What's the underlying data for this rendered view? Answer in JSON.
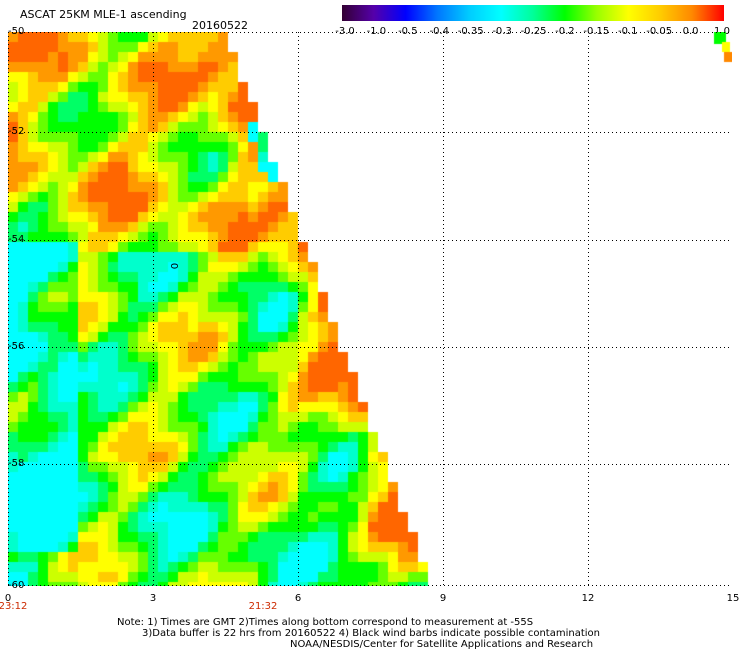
{
  "header": {
    "title": "ASCAT 25KM MLE-1 ascending",
    "date": "20160522"
  },
  "colorbar": {
    "labels": [
      "-3.0",
      "-1.0",
      "-0.5",
      "-0.4",
      "-0.35",
      "-0.3",
      "-0.25",
      "-0.2",
      "-0.15",
      "-0.1",
      "-0.05",
      "0.0",
      "1.0"
    ],
    "colors": [
      "#330033",
      "#5500aa",
      "#0000ff",
      "#0077ff",
      "#00ccff",
      "#00ffff",
      "#00ff99",
      "#00ff00",
      "#99ff00",
      "#ffff00",
      "#ffcc00",
      "#ff8800",
      "#ff0000"
    ]
  },
  "axes": {
    "y_ticks": [
      "-50",
      "-52",
      "-54",
      "-56",
      "-58",
      "-60"
    ],
    "x_ticks": [
      "0",
      "3",
      "6",
      "9",
      "12",
      "15"
    ],
    "time_labels": [
      "23:12",
      "21:32"
    ],
    "contour_label": "0"
  },
  "notes": {
    "line1": "Note: 1) Times are GMT 2)Times along bottom correspond to measurement at -55S",
    "line2": "3)Data buffer is 22 hrs from 20160522 4) Black wind barbs indicate possible contamination",
    "line3": "NOAA/NESDIS/Center for Satellite Applications and Research"
  }
}
